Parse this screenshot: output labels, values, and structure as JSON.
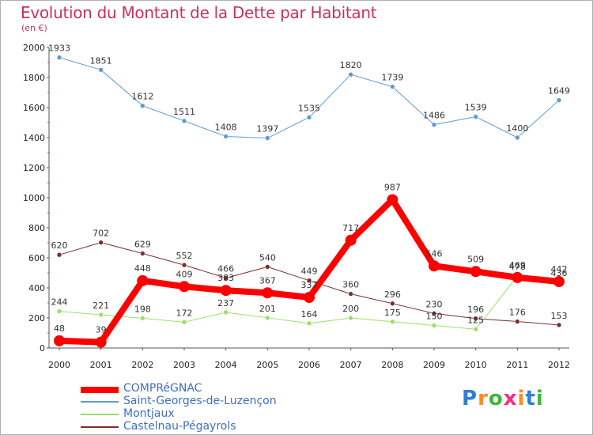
{
  "title": "Evolution du Montant de la Dette par Habitant",
  "unit": "(en €)",
  "logo": "Proxiti",
  "chart_data": {
    "type": "line",
    "title": "Evolution du Montant de la Dette par Habitant",
    "ylabel": "(en €)",
    "ylim": [
      0,
      2000
    ],
    "yticks": [
      0,
      200,
      400,
      600,
      800,
      1000,
      1200,
      1400,
      1600,
      1800,
      2000
    ],
    "grid": false,
    "legend_position": "bottom-left",
    "x": [
      "2000",
      "2001",
      "2002",
      "2003",
      "2004",
      "2005",
      "2006",
      "2007",
      "2008",
      "2009",
      "2010",
      "2011",
      "2012"
    ],
    "series": [
      {
        "name": "COMPRéGNAC",
        "color": "#ff0000",
        "values": [
          48,
          39,
          448,
          409,
          383,
          367,
          337,
          717,
          987,
          546,
          509,
          469,
          442
        ]
      },
      {
        "name": "Saint-Georges-de-Luzençon",
        "color": "#5b9bd5",
        "values": [
          1933,
          1851,
          1612,
          1511,
          1408,
          1397,
          1535,
          1820,
          1739,
          1486,
          1539,
          1400,
          1649
        ]
      },
      {
        "name": "Montjaux",
        "color": "#99e066",
        "values": [
          244,
          221,
          198,
          172,
          237,
          201,
          164,
          200,
          175,
          150,
          125,
          478,
          436
        ]
      },
      {
        "name": "Castelnau-Pégayrols",
        "color": "#7b2d2d",
        "values": [
          620,
          702,
          629,
          552,
          466,
          540,
          449,
          360,
          296,
          230,
          196,
          176,
          153
        ]
      }
    ]
  }
}
